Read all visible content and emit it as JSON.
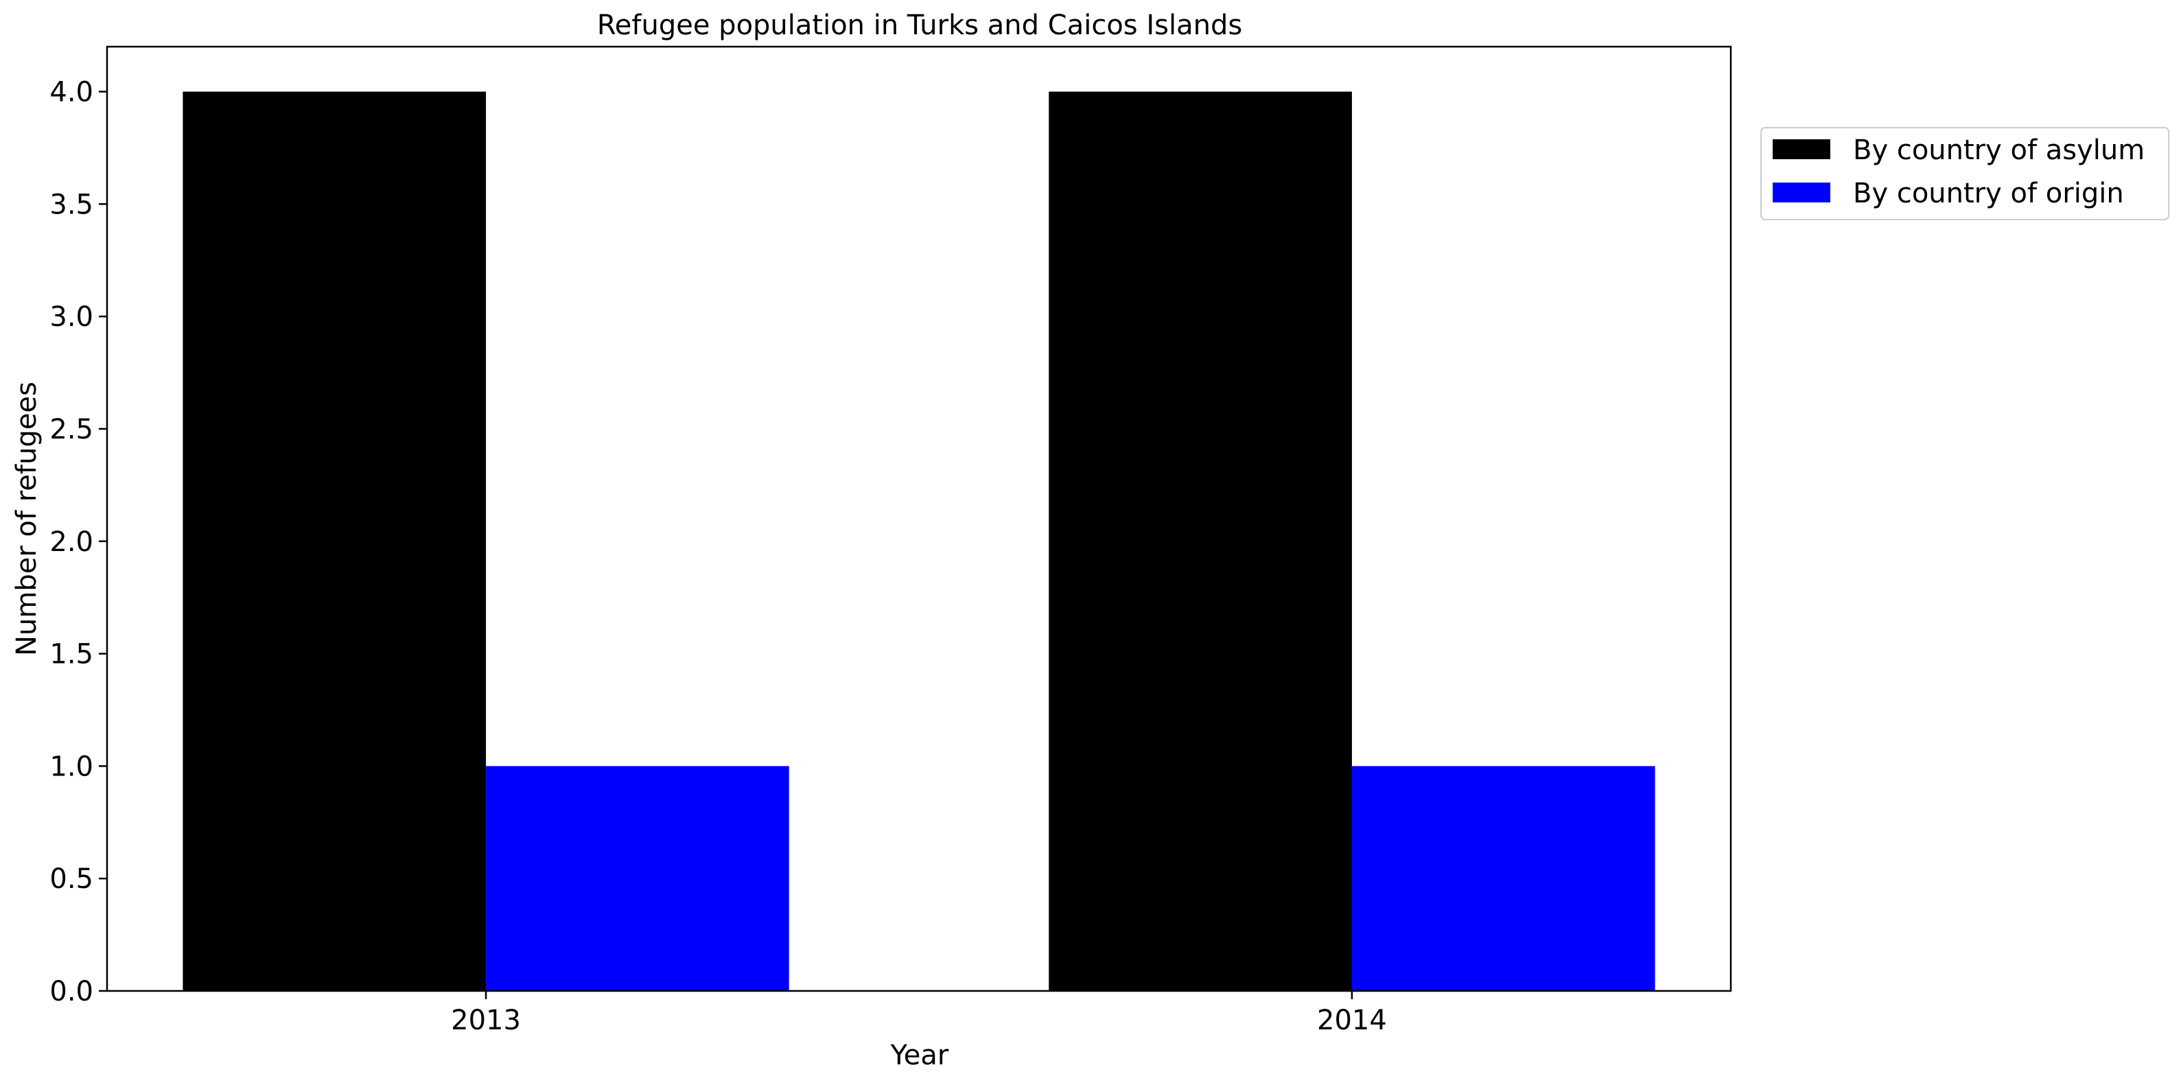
{
  "chart_data": {
    "type": "bar",
    "title": "Refugee population in Turks and Caicos Islands",
    "xlabel": "Year",
    "ylabel": "Number of refugees",
    "categories": [
      "2013",
      "2014"
    ],
    "series": [
      {
        "name": "By country of asylum",
        "values": [
          4,
          4
        ],
        "color": "#000000"
      },
      {
        "name": "By country of origin",
        "values": [
          1,
          1
        ],
        "color": "#0000ff"
      }
    ],
    "ylim": [
      0,
      4.2
    ],
    "yticks": [
      0.0,
      0.5,
      1.0,
      1.5,
      2.0,
      2.5,
      3.0,
      3.5,
      4.0
    ],
    "ytick_labels": [
      "0.0",
      "0.5",
      "1.0",
      "1.5",
      "2.0",
      "2.5",
      "3.0",
      "3.5",
      "4.0"
    ],
    "grid": false,
    "legend_position": "outside-top-right"
  }
}
